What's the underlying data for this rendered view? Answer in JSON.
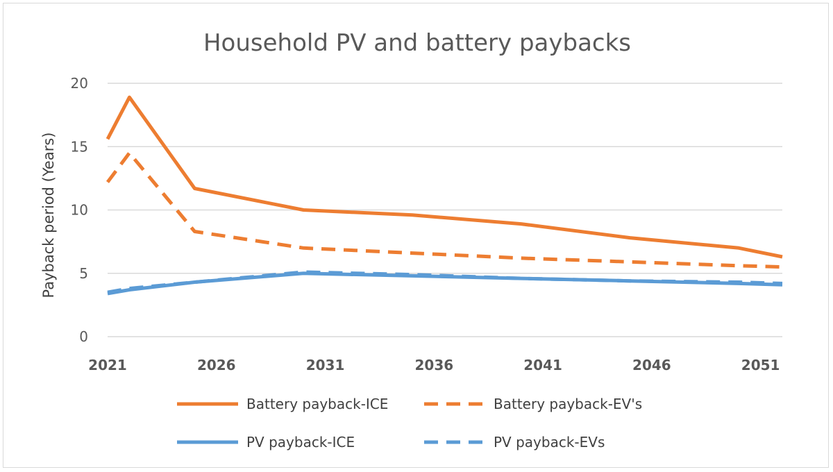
{
  "chart_data": {
    "type": "line",
    "title": "Household PV and battery  paybacks",
    "xlabel": "",
    "ylabel": "Payback period (Years)",
    "x_ticks": [
      "2021",
      "2026",
      "2031",
      "2036",
      "2041",
      "2046",
      "2051"
    ],
    "y_ticks": [
      "0",
      "5",
      "10",
      "15",
      "20"
    ],
    "xlim": [
      2021,
      2052
    ],
    "ylim": [
      0,
      20
    ],
    "grid": true,
    "legend_position": "bottom",
    "colors": {
      "orange": "#ED7D31",
      "blue": "#5B9BD5",
      "grid": "#D9D9D9"
    },
    "series": [
      {
        "name": "Battery payback-ICE",
        "color": "#ED7D31",
        "dashed": false,
        "x": [
          2021,
          2022,
          2025,
          2030,
          2035,
          2040,
          2045,
          2050,
          2052
        ],
        "values": [
          15.6,
          18.9,
          11.7,
          10.0,
          9.6,
          8.9,
          7.8,
          7.0,
          6.3
        ]
      },
      {
        "name": "Battery payback-EV's",
        "color": "#ED7D31",
        "dashed": true,
        "x": [
          2021,
          2022,
          2025,
          2030,
          2035,
          2040,
          2045,
          2050,
          2052
        ],
        "values": [
          12.2,
          14.5,
          8.3,
          7.0,
          6.6,
          6.2,
          5.9,
          5.6,
          5.5
        ]
      },
      {
        "name": "PV payback-ICE",
        "color": "#5B9BD5",
        "dashed": false,
        "x": [
          2021,
          2022,
          2025,
          2030,
          2035,
          2040,
          2045,
          2050,
          2052
        ],
        "values": [
          3.4,
          3.7,
          4.3,
          5.0,
          4.8,
          4.6,
          4.4,
          4.2,
          4.1
        ]
      },
      {
        "name": "PV payback-EVs",
        "color": "#5B9BD5",
        "dashed": true,
        "x": [
          2021,
          2022,
          2025,
          2030,
          2035,
          2040,
          2045,
          2050,
          2052
        ],
        "values": [
          3.5,
          3.8,
          4.3,
          5.1,
          4.9,
          4.6,
          4.4,
          4.3,
          4.2
        ]
      }
    ]
  }
}
